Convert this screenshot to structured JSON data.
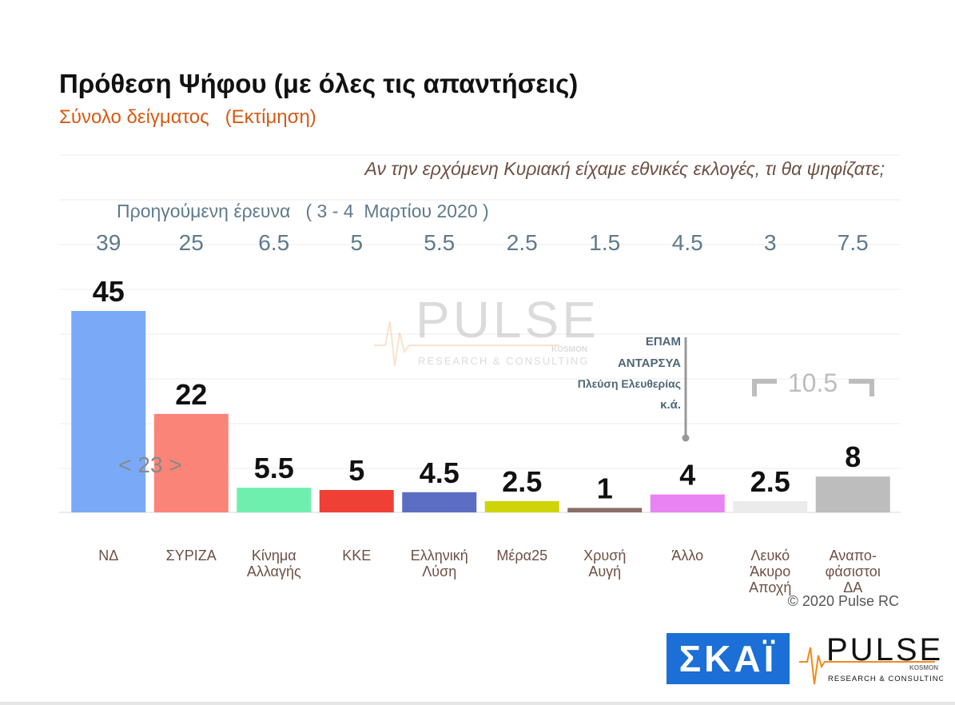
{
  "title": "Πρόθεση Ψήφου (με όλες τις απαντήσεις)",
  "subtitle": "Σύνολο δείγματος   (Εκτίμηση)",
  "question": "Αν την ερχόμενη Κυριακή είχαμε εθνικές εκλογές, τι θα ψηφίζατε;",
  "previous_survey_label": "Προηγούμενη έρευνα   ( 3 - 4  Μαρτίου 2020 )",
  "copyright": "© 2020 Pulse RC",
  "watermark": {
    "brand": "PULSE",
    "sub": "KOSMON",
    "tagline": "RESEARCH & CONSULTING"
  },
  "logos": {
    "skai": "ΣΚΑΪ",
    "pulse": "PULSE",
    "pulse_sub": "KOSMON",
    "pulse_tagline": "RESEARCH & CONSULTING"
  },
  "chart_data": {
    "type": "bar",
    "categories": [
      [
        "ΝΔ"
      ],
      [
        "ΣΥΡΙΖΑ"
      ],
      [
        "Κίνημα",
        "Αλλαγής"
      ],
      [
        "ΚΚΕ"
      ],
      [
        "Ελληνική",
        "Λύση"
      ],
      [
        "Μέρα25"
      ],
      [
        "Χρυσή",
        "Αυγή"
      ],
      [
        "Άλλο"
      ],
      [
        "Λευκό",
        "Άκυρο",
        "Αποχή"
      ],
      [
        "Αναπο-",
        "φάσιστοι",
        "ΔΑ"
      ]
    ],
    "values": [
      45,
      22,
      5.5,
      5,
      4.5,
      2.5,
      1,
      4,
      2.5,
      8
    ],
    "value_labels": [
      "45",
      "22",
      "5.5",
      "5",
      "4.5",
      "2.5",
      "1",
      "4",
      "2.5",
      "8"
    ],
    "previous_values": [
      "39",
      "25",
      "6.5",
      "5",
      "5.5",
      "2.5",
      "1.5",
      "4.5",
      "3",
      "7.5"
    ],
    "colors": [
      "#7aa9f7",
      "#fa8478",
      "#6fefae",
      "#ef4036",
      "#5b6ec4",
      "#cfd30a",
      "#8a6d68",
      "#e982f2",
      "#ebebeb",
      "#bdbdbd"
    ],
    "ylim": [
      0,
      50
    ],
    "annotations": {
      "gap": "< 23 >",
      "other_breakdown": [
        "ΕΠΑΜ",
        "ΑΝΤΑΡΣΥΑ",
        "Πλεύση Ελευθερίας",
        "κ.ά."
      ],
      "bracket_total": "10.5"
    },
    "grid": true,
    "legend": "none"
  }
}
